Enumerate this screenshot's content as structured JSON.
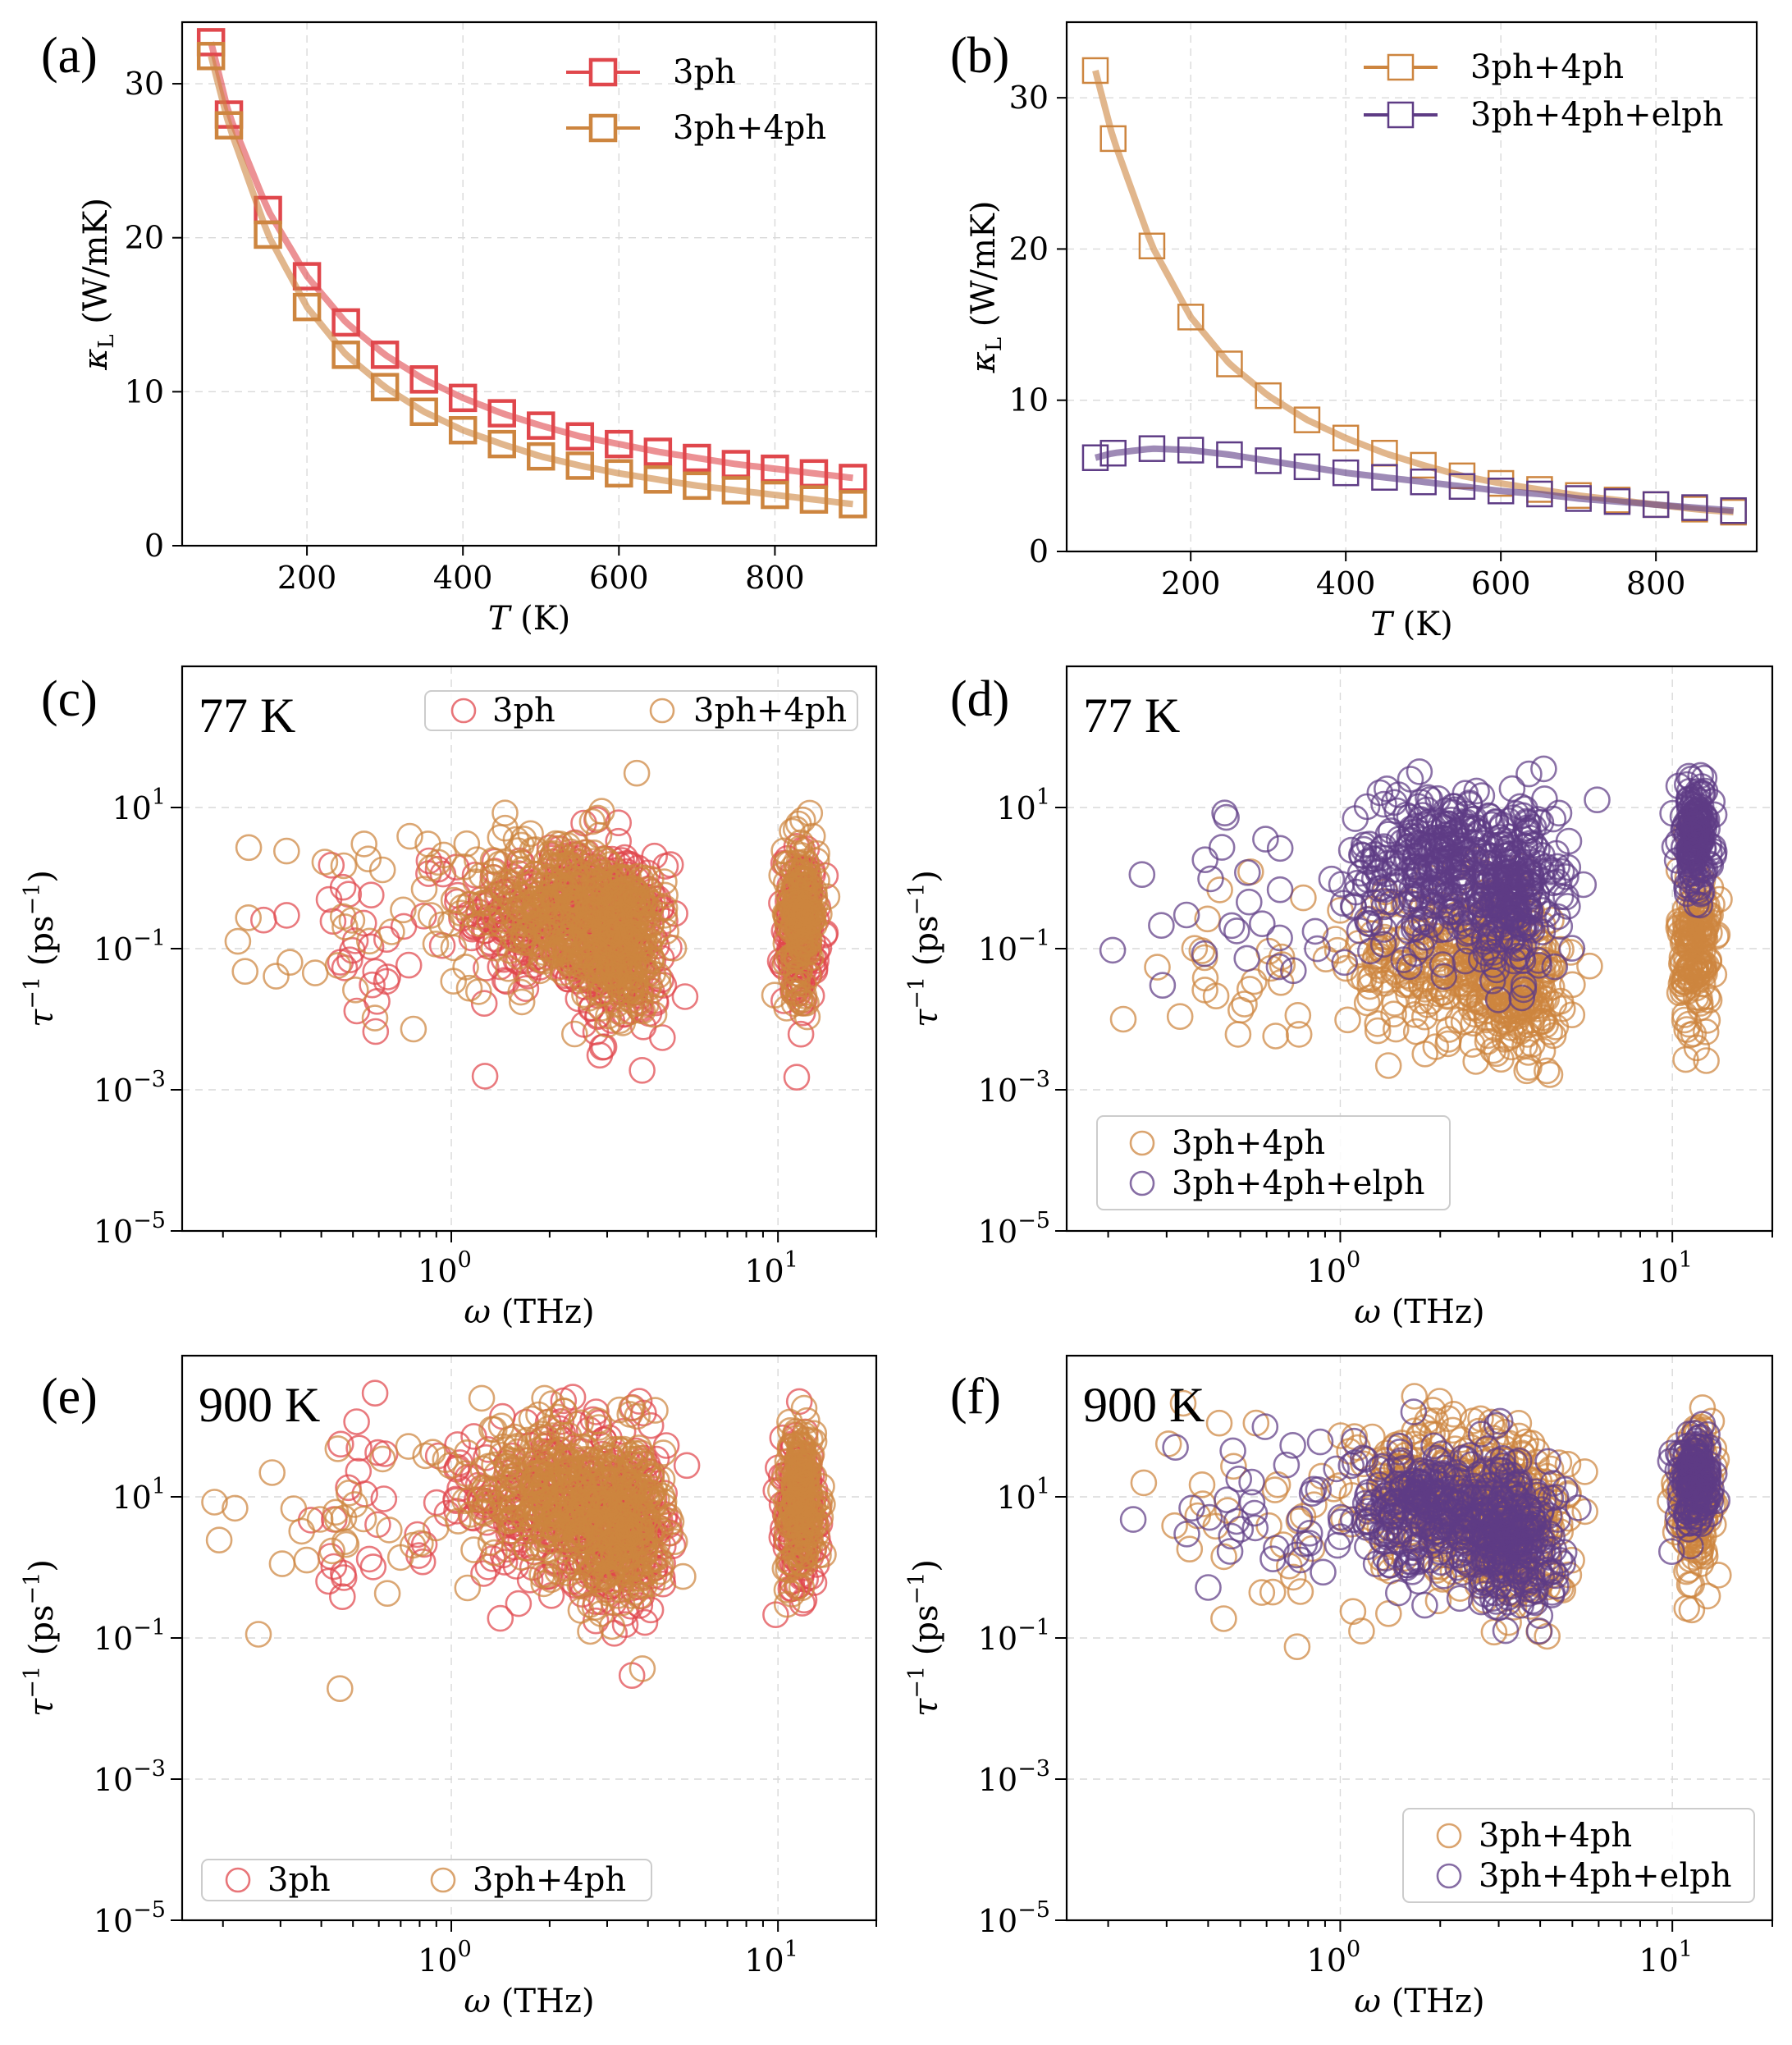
{
  "colors": {
    "red": "#e0474c",
    "orange": "#cd853f",
    "purple": "#5e3c85"
  },
  "panels": {
    "a": {
      "label": "(a)"
    },
    "b": {
      "label": "(b)"
    },
    "c": {
      "label": "(c)",
      "temp": "77 K"
    },
    "d": {
      "label": "(d)",
      "temp": "77 K"
    },
    "e": {
      "label": "(e)",
      "temp": "900 K"
    },
    "f": {
      "label": "(f)",
      "temp": "900 K"
    }
  },
  "axes": {
    "kappa_ylabel": "κL (W/mK)",
    "kappa_xlabel": "T (K)",
    "tau_ylabel": "τ⁻¹ (ps⁻¹)",
    "tau_xlabel": "ω (THz)"
  },
  "chart_data": [
    {
      "panel": "a",
      "type": "line",
      "xlabel": "T (K)",
      "ylabel": "κL (W/mK)",
      "xlim": [
        40,
        930
      ],
      "ylim": [
        0,
        34
      ],
      "xticks": [
        200,
        400,
        600,
        800
      ],
      "yticks": [
        0,
        10,
        20,
        30
      ],
      "legend": "top-right",
      "x": [
        77,
        100,
        150,
        200,
        250,
        300,
        350,
        400,
        450,
        500,
        550,
        600,
        650,
        700,
        750,
        800,
        850,
        900
      ],
      "series": [
        {
          "name": "3ph",
          "color": "red",
          "marker": "square",
          "values": [
            32.7,
            28.0,
            21.8,
            17.5,
            14.5,
            12.4,
            10.8,
            9.6,
            8.6,
            7.8,
            7.1,
            6.6,
            6.1,
            5.7,
            5.3,
            5.0,
            4.7,
            4.4
          ]
        },
        {
          "name": "3ph+4ph",
          "color": "orange",
          "marker": "square",
          "values": [
            31.8,
            27.3,
            20.2,
            15.5,
            12.4,
            10.3,
            8.7,
            7.5,
            6.6,
            5.8,
            5.2,
            4.7,
            4.3,
            3.9,
            3.6,
            3.3,
            3.0,
            2.7
          ]
        }
      ]
    },
    {
      "panel": "b",
      "type": "line",
      "xlabel": "T (K)",
      "ylabel": "κL (W/mK)",
      "xlim": [
        40,
        930
      ],
      "ylim": [
        0,
        35
      ],
      "xticks": [
        200,
        400,
        600,
        800
      ],
      "yticks": [
        0,
        10,
        20,
        30
      ],
      "legend": "top-right",
      "x": [
        77,
        100,
        150,
        200,
        250,
        300,
        350,
        400,
        450,
        500,
        550,
        600,
        650,
        700,
        750,
        800,
        850,
        900
      ],
      "series": [
        {
          "name": "3ph+4ph",
          "color": "orange",
          "marker": "square",
          "values": [
            31.8,
            27.3,
            20.2,
            15.5,
            12.4,
            10.3,
            8.7,
            7.5,
            6.5,
            5.7,
            5.0,
            4.5,
            4.1,
            3.7,
            3.4,
            3.1,
            2.8,
            2.6
          ]
        },
        {
          "name": "3ph+4ph+elph",
          "color": "purple",
          "marker": "square",
          "values": [
            6.2,
            6.5,
            6.8,
            6.7,
            6.4,
            6.0,
            5.6,
            5.2,
            4.9,
            4.6,
            4.3,
            4.0,
            3.8,
            3.5,
            3.3,
            3.1,
            2.9,
            2.7
          ]
        }
      ]
    },
    {
      "panel": "c",
      "type": "scatter",
      "xscale": "log",
      "yscale": "log",
      "xlabel": "ω (THz)",
      "ylabel": "τ⁻¹ (ps⁻¹)",
      "xlim": [
        0.15,
        20
      ],
      "ylim": [
        1e-05,
        1000
      ],
      "legend": "top-right",
      "legend_columns": 2,
      "series": [
        {
          "name": "3ph",
          "color": "red"
        },
        {
          "name": "3ph+4ph",
          "color": "orange"
        }
      ]
    },
    {
      "panel": "d",
      "type": "scatter",
      "xscale": "log",
      "yscale": "log",
      "xlabel": "ω (THz)",
      "ylabel": "τ⁻¹ (ps⁻¹)",
      "xlim": [
        0.15,
        20
      ],
      "ylim": [
        1e-05,
        1000
      ],
      "legend": "lower-left",
      "series": [
        {
          "name": "3ph+4ph",
          "color": "orange"
        },
        {
          "name": "3ph+4ph+elph",
          "color": "purple"
        }
      ]
    },
    {
      "panel": "e",
      "type": "scatter",
      "xscale": "log",
      "yscale": "log",
      "xlabel": "ω (THz)",
      "ylabel": "τ⁻¹ (ps⁻¹)",
      "xlim": [
        0.15,
        20
      ],
      "ylim": [
        1e-05,
        1000
      ],
      "legend": "lower-left",
      "legend_columns": 2,
      "series": [
        {
          "name": "3ph",
          "color": "red"
        },
        {
          "name": "3ph+4ph",
          "color": "orange"
        }
      ]
    },
    {
      "panel": "f",
      "type": "scatter",
      "xscale": "log",
      "yscale": "log",
      "xlabel": "ω (THz)",
      "ylabel": "τ⁻¹ (ps⁻¹)",
      "xlim": [
        0.15,
        20
      ],
      "ylim": [
        1e-05,
        1000
      ],
      "legend": "lower-right",
      "series": [
        {
          "name": "3ph+4ph",
          "color": "orange"
        },
        {
          "name": "3ph+4ph+elph",
          "color": "purple"
        }
      ]
    }
  ]
}
